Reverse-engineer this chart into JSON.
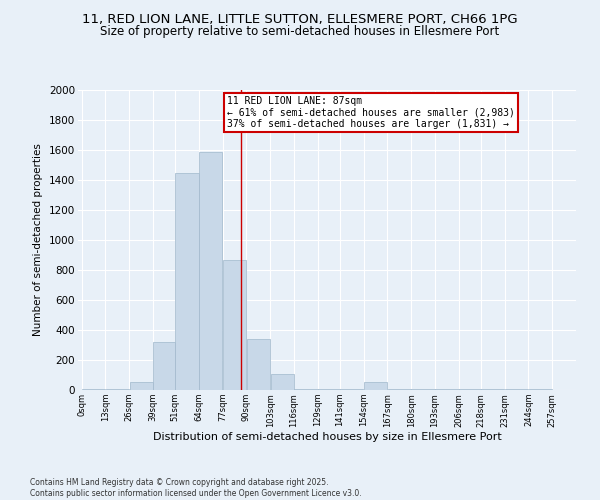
{
  "title_line1": "11, RED LION LANE, LITTLE SUTTON, ELLESMERE PORT, CH66 1PG",
  "title_line2": "Size of property relative to semi-detached houses in Ellesmere Port",
  "xlabel": "Distribution of semi-detached houses by size in Ellesmere Port",
  "ylabel": "Number of semi-detached properties",
  "footnote": "Contains HM Land Registry data © Crown copyright and database right 2025.\nContains public sector information licensed under the Open Government Licence v3.0.",
  "bar_left_edges": [
    0,
    13,
    26,
    39,
    51,
    64,
    77,
    90,
    103,
    116,
    129,
    141,
    154,
    167,
    180,
    193,
    206,
    218,
    231,
    244
  ],
  "bar_widths": [
    13,
    13,
    13,
    12,
    13,
    13,
    13,
    13,
    13,
    13,
    12,
    13,
    13,
    13,
    13,
    13,
    12,
    13,
    13,
    13
  ],
  "bar_heights": [
    5,
    5,
    55,
    320,
    1450,
    1590,
    870,
    340,
    110,
    5,
    5,
    5,
    55,
    5,
    5,
    5,
    5,
    5,
    5,
    5
  ],
  "tick_labels": [
    "0sqm",
    "13sqm",
    "26sqm",
    "39sqm",
    "51sqm",
    "64sqm",
    "77sqm",
    "90sqm",
    "103sqm",
    "116sqm",
    "129sqm",
    "141sqm",
    "154sqm",
    "167sqm",
    "180sqm",
    "193sqm",
    "206sqm",
    "218sqm",
    "231sqm",
    "244sqm",
    "257sqm"
  ],
  "tick_positions": [
    0,
    13,
    26,
    39,
    51,
    64,
    77,
    90,
    103,
    116,
    129,
    141,
    154,
    167,
    180,
    193,
    206,
    218,
    231,
    244,
    257
  ],
  "bar_color": "#c8d8e8",
  "bar_edge_color": "#a0b8cc",
  "property_line_x": 87,
  "property_label": "11 RED LION LANE: 87sqm",
  "annotation_line1": "← 61% of semi-detached houses are smaller (2,983)",
  "annotation_line2": "37% of semi-detached houses are larger (1,831) →",
  "annotation_box_color": "#ffffff",
  "annotation_box_edge": "#cc0000",
  "line_color": "#cc0000",
  "ylim": [
    0,
    2000
  ],
  "yticks": [
    0,
    200,
    400,
    600,
    800,
    1000,
    1200,
    1400,
    1600,
    1800,
    2000
  ],
  "background_color": "#e8f0f8",
  "grid_color": "#ffffff",
  "title_fontsize": 9.5,
  "subtitle_fontsize": 8.5,
  "footnote_fontsize": 5.5
}
